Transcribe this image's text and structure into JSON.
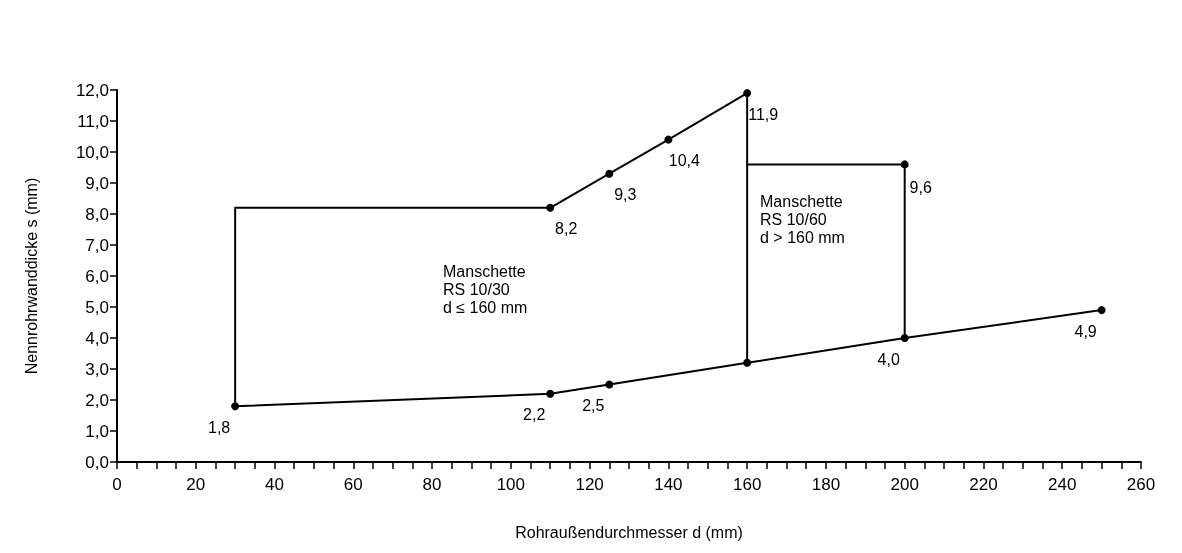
{
  "chart_data": {
    "type": "line",
    "xlabel": "Rohraußendurchmesser d (mm)",
    "ylabel": "Nennrohrwanddicke s (mm)",
    "annotations": [
      "Manschette\nRS 10/30\nd ≤ 160 mm",
      "Manschette\nRS 10/60\nd > 160 mm"
    ],
    "marker": "circle",
    "line_style": "solid",
    "grid": false,
    "xlim": [
      0,
      260
    ],
    "ylim": [
      0,
      12
    ],
    "xticks": [
      0,
      {
        "value": 5,
        "label": null
      },
      {
        "value": 10,
        "label": null
      },
      {
        "value": 15,
        "label": null
      },
      20,
      {
        "value": 25,
        "label": null
      },
      {
        "value": 30,
        "label": null
      },
      {
        "value": 35,
        "label": null
      },
      40,
      {
        "value": 45,
        "label": null
      },
      {
        "value": 50,
        "label": null
      },
      {
        "value": 55,
        "label": null
      },
      60,
      {
        "value": 65,
        "label": null
      },
      {
        "value": 70,
        "label": null
      },
      {
        "value": 75,
        "label": null
      },
      80,
      {
        "value": 85,
        "label": null
      },
      {
        "value": 90,
        "label": null
      },
      {
        "value": 95,
        "label": null
      },
      100,
      {
        "value": 105,
        "label": null
      },
      {
        "value": 110,
        "label": null
      },
      {
        "value": 115,
        "label": null
      },
      120,
      {
        "value": 125,
        "label": null
      },
      {
        "value": 130,
        "label": null
      },
      {
        "value": 135,
        "label": null
      },
      140,
      {
        "value": 145,
        "label": null
      },
      {
        "value": 150,
        "label": null
      },
      {
        "value": 155,
        "label": null
      },
      160,
      {
        "value": 165,
        "label": null
      },
      {
        "value": 170,
        "label": null
      },
      {
        "value": 175,
        "label": null
      },
      180,
      {
        "value": 185,
        "label": null
      },
      {
        "value": 190,
        "label": null
      },
      {
        "value": 195,
        "label": null
      },
      200,
      {
        "value": 205,
        "label": null
      },
      {
        "value": 210,
        "label": null
      },
      {
        "value": 215,
        "label": null
      },
      220,
      {
        "value": 225,
        "label": null
      },
      {
        "value": 230,
        "label": null
      },
      {
        "value": 235,
        "label": null
      },
      240,
      {
        "value": 245,
        "label": null
      },
      {
        "value": 250,
        "label": null
      },
      {
        "value": 255,
        "label": null
      },
      260
    ],
    "yticks": [
      {
        "value": 0,
        "label": "0,0"
      },
      {
        "value": 1,
        "label": "1,0"
      },
      {
        "value": 2,
        "label": "2,0"
      },
      {
        "value": 3,
        "label": "3,0"
      },
      {
        "value": 4,
        "label": "4,0"
      },
      {
        "value": 5,
        "label": "5,0"
      },
      {
        "value": 6,
        "label": "6,0"
      },
      {
        "value": 7,
        "label": "7,0"
      },
      {
        "value": 8,
        "label": "8,0"
      },
      {
        "value": 9,
        "label": "9,0"
      },
      {
        "value": 10,
        "label": "10,0"
      },
      {
        "value": 11,
        "label": "11,0"
      },
      {
        "value": 12,
        "label": "12,0"
      }
    ],
    "series": [
      {
        "color": "#000000",
        "x": [
          30,
          110,
          125,
          160,
          200,
          250
        ],
        "values": [
          1.8,
          2.2,
          2.5,
          3.2,
          4.0,
          4.9
        ],
        "value_labels": [
          "1,8",
          "2,2",
          "2,5",
          null,
          "4,0",
          "4,9"
        ]
      },
      {
        "color": "#000000",
        "marker": "none",
        "x": [
          30,
          30,
          110
        ],
        "values": [
          1.8,
          8.2,
          8.2
        ]
      },
      {
        "color": "#000000",
        "x": [
          110,
          125,
          140,
          160
        ],
        "values": [
          8.2,
          9.3,
          10.4,
          11.9
        ],
        "value_labels": [
          "8,2",
          "9,3",
          "10,4",
          "11,9"
        ]
      },
      {
        "color": "#000000",
        "marker": "none",
        "x": [
          160,
          160
        ],
        "values": [
          11.9,
          3.2
        ]
      },
      {
        "color": "#000000",
        "marker": "none",
        "x": [
          160,
          200
        ],
        "values": [
          9.6,
          9.6
        ]
      },
      {
        "color": "#000000",
        "marker": "none",
        "x": [
          200,
          200
        ],
        "values": [
          9.6,
          4.0
        ]
      },
      {
        "color": "#000000",
        "x": [
          200
        ],
        "values": [
          9.6
        ],
        "value_labels": [
          "9,6"
        ]
      }
    ]
  }
}
